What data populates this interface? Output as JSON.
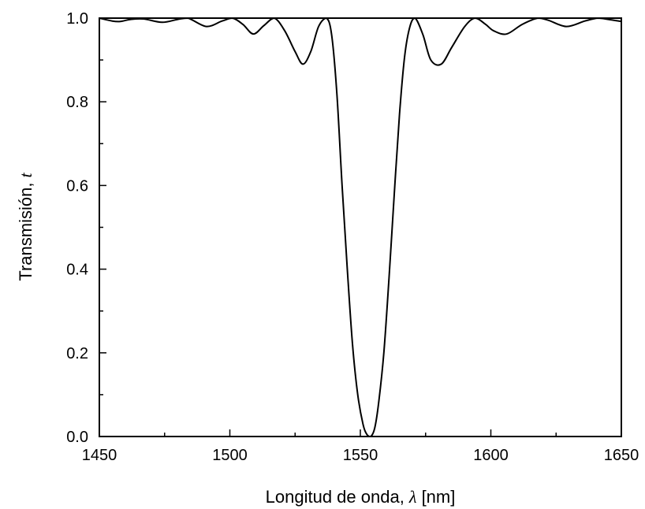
{
  "chart_data": {
    "type": "line",
    "title": "",
    "xlabel": "Longitud de onda, λ [nm]",
    "xlabel_parts": {
      "prefix": "Longitud de onda, ",
      "symbol": "λ",
      "suffix": " [nm]"
    },
    "ylabel": "Transmisión, t",
    "ylabel_parts": {
      "prefix": "Transmisión, ",
      "symbol": "t"
    },
    "xlim": [
      1450,
      1650
    ],
    "ylim": [
      0.0,
      1.0
    ],
    "xticks": [
      "1450",
      "1500",
      "1550",
      "1600",
      "1650"
    ],
    "yticks": [
      "0.0",
      "0.2",
      "0.4",
      "0.6",
      "0.8",
      "1.0"
    ],
    "grid": false,
    "legend": "none",
    "line_color": "#000000",
    "series": [
      {
        "x": [
          1450,
          1455,
          1458,
          1462,
          1467,
          1474,
          1480,
          1484,
          1491,
          1497,
          1501,
          1505,
          1509,
          1513,
          1517,
          1521,
          1525,
          1528,
          1531,
          1534,
          1537,
          1539,
          1541,
          1543,
          1545,
          1547,
          1549,
          1551,
          1552.5,
          1554,
          1555.5,
          1557,
          1559,
          1561,
          1563,
          1565,
          1567,
          1569,
          1571,
          1574,
          1577,
          1581,
          1585,
          1590,
          1594,
          1598,
          1601,
          1606,
          1612,
          1618,
          1622,
          1629,
          1636,
          1641,
          1645,
          1650
        ],
        "y": [
          1.0,
          0.993,
          0.992,
          0.997,
          0.998,
          0.99,
          0.997,
          1.0,
          0.98,
          0.993,
          1.0,
          0.985,
          0.962,
          0.982,
          1.0,
          0.97,
          0.92,
          0.89,
          0.92,
          0.98,
          1.0,
          0.96,
          0.82,
          0.6,
          0.4,
          0.22,
          0.1,
          0.03,
          0.005,
          0.0,
          0.02,
          0.08,
          0.2,
          0.38,
          0.58,
          0.77,
          0.91,
          0.98,
          1.0,
          0.96,
          0.9,
          0.89,
          0.93,
          0.98,
          1.0,
          0.985,
          0.97,
          0.962,
          0.985,
          1.0,
          0.995,
          0.98,
          0.993,
          1.0,
          0.997,
          0.992
        ]
      }
    ]
  }
}
